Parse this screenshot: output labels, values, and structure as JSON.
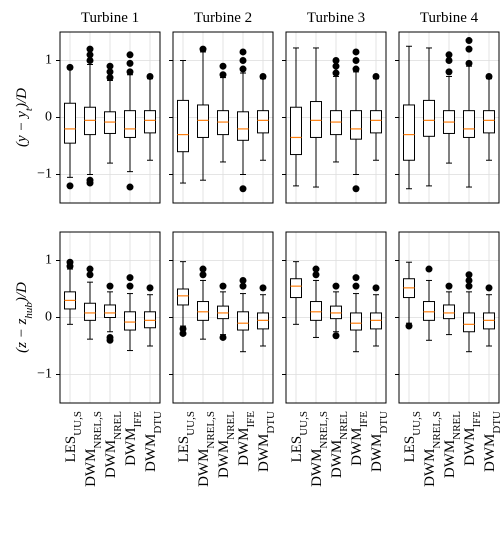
{
  "chart_data": [
    {
      "type": "box",
      "title": "Turbine 1",
      "ylabel": [
        {
          "text": "(y − y"
        },
        {
          "text": "t",
          "sub": true
        },
        {
          "text": ")/D"
        }
      ],
      "ylim": [
        -1.5,
        1.5
      ],
      "yticks": [
        {
          "value": -1,
          "label": "−1"
        },
        0,
        1
      ],
      "show_ytick_labels": true,
      "grid": true,
      "box_color": "#000000",
      "median_color": "#ff7f0e",
      "boxes": [
        {
          "whislo": -1.05,
          "q1": -0.45,
          "med": -0.2,
          "q3": 0.25,
          "whishi": 0.85,
          "fliers": [
            0.88,
            -1.2
          ]
        },
        {
          "whislo": -1.0,
          "q1": -0.3,
          "med": -0.05,
          "q3": 0.18,
          "whishi": 0.93,
          "fliers": [
            1.0,
            1.1,
            1.2,
            -1.1,
            -1.15
          ]
        },
        {
          "whislo": -0.8,
          "q1": -0.28,
          "med": -0.08,
          "q3": 0.1,
          "whishi": 0.65,
          "fliers": [
            0.7,
            0.8,
            0.9
          ]
        },
        {
          "whislo": -0.95,
          "q1": -0.35,
          "med": -0.2,
          "q3": 0.12,
          "whishi": 0.75,
          "fliers": [
            0.8,
            0.95,
            1.1,
            -1.22
          ]
        },
        {
          "whislo": -0.75,
          "q1": -0.27,
          "med": -0.05,
          "q3": 0.12,
          "whishi": 0.68,
          "fliers": [
            0.72
          ]
        }
      ]
    },
    {
      "type": "box",
      "title": "Turbine 2",
      "ylim": [
        -1.5,
        1.5
      ],
      "yticks": [
        {
          "value": -1,
          "label": "−1"
        },
        0,
        1
      ],
      "show_ytick_labels": false,
      "grid": true,
      "box_color": "#000000",
      "median_color": "#ff7f0e",
      "boxes": [
        {
          "whislo": -1.15,
          "q1": -0.6,
          "med": -0.3,
          "q3": 0.3,
          "whishi": 1.0,
          "fliers": []
        },
        {
          "whislo": -1.1,
          "q1": -0.35,
          "med": -0.05,
          "q3": 0.22,
          "whishi": 1.15,
          "fliers": [
            1.2
          ]
        },
        {
          "whislo": -0.78,
          "q1": -0.3,
          "med": -0.08,
          "q3": 0.12,
          "whishi": 0.7,
          "fliers": [
            0.75,
            0.9
          ]
        },
        {
          "whislo": -1.0,
          "q1": -0.4,
          "med": -0.2,
          "q3": 0.1,
          "whishi": 0.78,
          "fliers": [
            0.85,
            1.0,
            1.15,
            -1.25
          ]
        },
        {
          "whislo": -0.75,
          "q1": -0.27,
          "med": -0.05,
          "q3": 0.12,
          "whishi": 0.68,
          "fliers": [
            0.72
          ]
        }
      ]
    },
    {
      "type": "box",
      "title": "Turbine 3",
      "ylim": [
        -1.5,
        1.5
      ],
      "yticks": [
        {
          "value": -1,
          "label": "−1"
        },
        0,
        1
      ],
      "show_ytick_labels": false,
      "grid": true,
      "box_color": "#000000",
      "median_color": "#ff7f0e",
      "boxes": [
        {
          "whislo": -1.2,
          "q1": -0.65,
          "med": -0.35,
          "q3": 0.18,
          "whishi": 1.22,
          "fliers": []
        },
        {
          "whislo": -1.22,
          "q1": -0.35,
          "med": -0.05,
          "q3": 0.28,
          "whishi": 1.22,
          "fliers": []
        },
        {
          "whislo": -0.78,
          "q1": -0.3,
          "med": -0.08,
          "q3": 0.12,
          "whishi": 0.72,
          "fliers": [
            0.78,
            0.9,
            1.0
          ]
        },
        {
          "whislo": -1.0,
          "q1": -0.38,
          "med": -0.2,
          "q3": 0.12,
          "whishi": 0.8,
          "fliers": [
            0.85,
            1.0,
            1.15,
            -1.25
          ]
        },
        {
          "whislo": -0.75,
          "q1": -0.27,
          "med": -0.05,
          "q3": 0.12,
          "whishi": 0.68,
          "fliers": [
            0.72
          ]
        }
      ]
    },
    {
      "type": "box",
      "title": "Turbine 4",
      "ylim": [
        -1.5,
        1.5
      ],
      "yticks": [
        {
          "value": -1,
          "label": "−1"
        },
        0,
        1
      ],
      "show_ytick_labels": false,
      "grid": true,
      "box_color": "#000000",
      "median_color": "#ff7f0e",
      "boxes": [
        {
          "whislo": -1.25,
          "q1": -0.75,
          "med": -0.3,
          "q3": 0.22,
          "whishi": 1.25,
          "fliers": []
        },
        {
          "whislo": -1.2,
          "q1": -0.33,
          "med": -0.05,
          "q3": 0.3,
          "whishi": 1.22,
          "fliers": []
        },
        {
          "whislo": -0.8,
          "q1": -0.28,
          "med": -0.08,
          "q3": 0.12,
          "whishi": 0.72,
          "fliers": [
            0.8,
            1.0,
            1.1
          ]
        },
        {
          "whislo": -1.22,
          "q1": -0.35,
          "med": -0.2,
          "q3": 0.12,
          "whishi": 0.9,
          "fliers": [
            0.95,
            1.2,
            1.35
          ]
        },
        {
          "whislo": -0.75,
          "q1": -0.27,
          "med": -0.05,
          "q3": 0.12,
          "whishi": 0.68,
          "fliers": [
            0.72
          ]
        }
      ]
    },
    {
      "type": "box",
      "ylabel": [
        {
          "text": "(z − z"
        },
        {
          "text": "hub",
          "sub": true
        },
        {
          "text": ")/D"
        }
      ],
      "ylim": [
        -1.5,
        1.5
      ],
      "yticks": [
        {
          "value": -1,
          "label": "−1"
        },
        0,
        1
      ],
      "show_ytick_labels": true,
      "grid": true,
      "box_color": "#000000",
      "median_color": "#ff7f0e",
      "categories": [
        [
          {
            "text": "LES"
          },
          {
            "text": "UU,S",
            "sub": true
          }
        ],
        [
          {
            "text": "DWM"
          },
          {
            "text": "NREL,S",
            "sub": true
          }
        ],
        [
          {
            "text": "DWM"
          },
          {
            "text": "NREL",
            "sub": true
          }
        ],
        [
          {
            "text": "DWM"
          },
          {
            "text": "IFE",
            "sub": true
          }
        ],
        [
          {
            "text": "DWM"
          },
          {
            "text": "DTU",
            "sub": true
          }
        ]
      ],
      "boxes": [
        {
          "whislo": -0.12,
          "q1": 0.15,
          "med": 0.3,
          "q3": 0.45,
          "whishi": 0.85,
          "fliers": [
            0.9,
            0.97
          ]
        },
        {
          "whislo": -0.38,
          "q1": -0.05,
          "med": 0.08,
          "q3": 0.25,
          "whishi": 0.62,
          "fliers": [
            0.75,
            0.85
          ]
        },
        {
          "whislo": -0.25,
          "q1": 0.0,
          "med": 0.08,
          "q3": 0.22,
          "whishi": 0.45,
          "fliers": [
            0.55,
            -0.35,
            -0.4
          ]
        },
        {
          "whislo": -0.58,
          "q1": -0.22,
          "med": -0.08,
          "q3": 0.1,
          "whishi": 0.42,
          "fliers": [
            0.55,
            0.7
          ]
        },
        {
          "whislo": -0.5,
          "q1": -0.18,
          "med": -0.05,
          "q3": 0.1,
          "whishi": 0.4,
          "fliers": [
            0.52
          ]
        }
      ]
    },
    {
      "type": "box",
      "ylim": [
        -1.5,
        1.5
      ],
      "yticks": [
        {
          "value": -1,
          "label": "−1"
        },
        0,
        1
      ],
      "show_ytick_labels": false,
      "grid": true,
      "box_color": "#000000",
      "median_color": "#ff7f0e",
      "categories": [
        [
          {
            "text": "LES"
          },
          {
            "text": "UU,S",
            "sub": true
          }
        ],
        [
          {
            "text": "DWM"
          },
          {
            "text": "NREL,S",
            "sub": true
          }
        ],
        [
          {
            "text": "DWM"
          },
          {
            "text": "NREL",
            "sub": true
          }
        ],
        [
          {
            "text": "DWM"
          },
          {
            "text": "IFE",
            "sub": true
          }
        ],
        [
          {
            "text": "DWM"
          },
          {
            "text": "DTU",
            "sub": true
          }
        ]
      ],
      "boxes": [
        {
          "whislo": -0.15,
          "q1": 0.22,
          "med": 0.38,
          "q3": 0.5,
          "whishi": 0.98,
          "fliers": [
            -0.2,
            -0.28
          ]
        },
        {
          "whislo": -0.38,
          "q1": -0.05,
          "med": 0.1,
          "q3": 0.28,
          "whishi": 0.65,
          "fliers": [
            0.75,
            0.85
          ]
        },
        {
          "whislo": -0.3,
          "q1": -0.02,
          "med": 0.08,
          "q3": 0.2,
          "whishi": 0.45,
          "fliers": [
            0.55,
            -0.35
          ]
        },
        {
          "whislo": -0.6,
          "q1": -0.22,
          "med": -0.1,
          "q3": 0.1,
          "whishi": 0.42,
          "fliers": [
            0.55,
            0.65
          ]
        },
        {
          "whislo": -0.5,
          "q1": -0.2,
          "med": -0.05,
          "q3": 0.08,
          "whishi": 0.4,
          "fliers": [
            0.52
          ]
        }
      ]
    },
    {
      "type": "box",
      "ylim": [
        -1.5,
        1.5
      ],
      "yticks": [
        {
          "value": -1,
          "label": "−1"
        },
        0,
        1
      ],
      "show_ytick_labels": false,
      "grid": true,
      "box_color": "#000000",
      "median_color": "#ff7f0e",
      "categories": [
        [
          {
            "text": "LES"
          },
          {
            "text": "UU,S",
            "sub": true
          }
        ],
        [
          {
            "text": "DWM"
          },
          {
            "text": "NREL,S",
            "sub": true
          }
        ],
        [
          {
            "text": "DWM"
          },
          {
            "text": "NREL",
            "sub": true
          }
        ],
        [
          {
            "text": "DWM"
          },
          {
            "text": "IFE",
            "sub": true
          }
        ],
        [
          {
            "text": "DWM"
          },
          {
            "text": "DTU",
            "sub": true
          }
        ]
      ],
      "boxes": [
        {
          "whislo": -0.12,
          "q1": 0.35,
          "med": 0.55,
          "q3": 0.68,
          "whishi": 0.98,
          "fliers": []
        },
        {
          "whislo": -0.35,
          "q1": -0.05,
          "med": 0.1,
          "q3": 0.28,
          "whishi": 0.65,
          "fliers": [
            0.75,
            0.85
          ]
        },
        {
          "whislo": -0.25,
          "q1": -0.02,
          "med": 0.08,
          "q3": 0.2,
          "whishi": 0.45,
          "fliers": [
            0.55,
            -0.32
          ]
        },
        {
          "whislo": -0.6,
          "q1": -0.22,
          "med": -0.1,
          "q3": 0.08,
          "whishi": 0.42,
          "fliers": [
            0.55,
            0.7
          ]
        },
        {
          "whislo": -0.5,
          "q1": -0.2,
          "med": -0.05,
          "q3": 0.08,
          "whishi": 0.4,
          "fliers": [
            0.52
          ]
        }
      ]
    },
    {
      "type": "box",
      "ylim": [
        -1.5,
        1.5
      ],
      "yticks": [
        {
          "value": -1,
          "label": "−1"
        },
        0,
        1
      ],
      "show_ytick_labels": false,
      "grid": true,
      "box_color": "#000000",
      "median_color": "#ff7f0e",
      "categories": [
        [
          {
            "text": "LES"
          },
          {
            "text": "UU,S",
            "sub": true
          }
        ],
        [
          {
            "text": "DWM"
          },
          {
            "text": "NREL,S",
            "sub": true
          }
        ],
        [
          {
            "text": "DWM"
          },
          {
            "text": "NREL",
            "sub": true
          }
        ],
        [
          {
            "text": "DWM"
          },
          {
            "text": "IFE",
            "sub": true
          }
        ],
        [
          {
            "text": "DWM"
          },
          {
            "text": "DTU",
            "sub": true
          }
        ]
      ],
      "boxes": [
        {
          "whislo": -0.1,
          "q1": 0.35,
          "med": 0.52,
          "q3": 0.68,
          "whishi": 0.97,
          "fliers": [
            -0.15
          ]
        },
        {
          "whislo": -0.4,
          "q1": -0.05,
          "med": 0.1,
          "q3": 0.28,
          "whishi": 0.65,
          "fliers": [
            0.85
          ]
        },
        {
          "whislo": -0.3,
          "q1": -0.02,
          "med": 0.08,
          "q3": 0.22,
          "whishi": 0.45,
          "fliers": [
            0.55
          ]
        },
        {
          "whislo": -0.6,
          "q1": -0.25,
          "med": -0.12,
          "q3": 0.08,
          "whishi": 0.45,
          "fliers": [
            0.55,
            0.65,
            0.75
          ]
        },
        {
          "whislo": -0.5,
          "q1": -0.2,
          "med": -0.05,
          "q3": 0.08,
          "whishi": 0.4,
          "fliers": [
            0.52
          ]
        }
      ]
    }
  ]
}
